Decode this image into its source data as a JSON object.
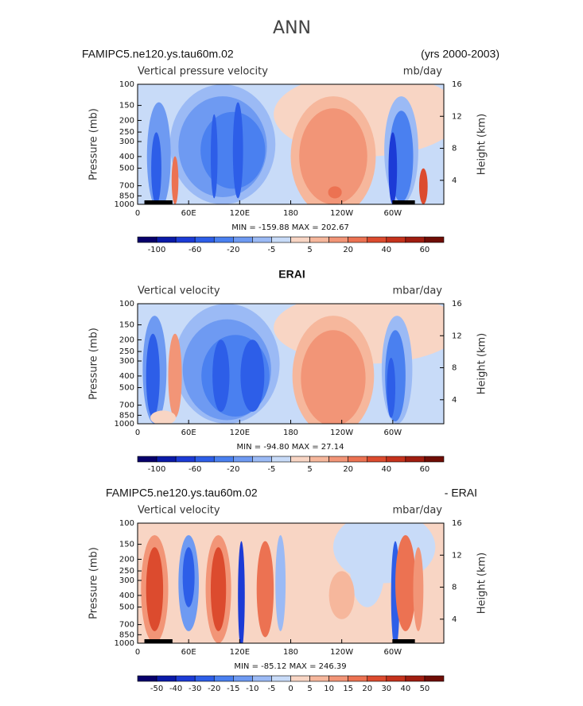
{
  "title": "ANN",
  "panels": [
    {
      "case": "FAMIPC5.ne120.ys.tau60m.02",
      "years": "(yrs 2000-2003)",
      "variable": "Vertical pressure velocity",
      "units": "mb/day",
      "y_label": "Pressure (mb)",
      "y2_label": "Height (km)",
      "ylim": [
        1000,
        100
      ],
      "yticks": [
        100,
        150,
        200,
        250,
        300,
        400,
        500,
        700,
        850,
        1000
      ],
      "y2lim": [
        1,
        16
      ],
      "y2ticks": [
        16,
        12,
        8,
        4
      ],
      "xlim": [
        0,
        360
      ],
      "xticks": [
        0,
        {
          "value": 60,
          "label": "60E"
        },
        {
          "value": 120,
          "label": "120E"
        },
        180,
        {
          "value": 240,
          "label": "120W"
        },
        {
          "value": 300,
          "label": "60W"
        }
      ],
      "stats": "MIN = -159.88   MAX = 202.67",
      "colorbar": {
        "labels": [
          -100,
          -60,
          -20,
          -5,
          5,
          20,
          40,
          60
        ],
        "colors": [
          "#08006b",
          "#0a1aa8",
          "#1c3bd6",
          "#2d5ee8",
          "#4a80f0",
          "#6e9af2",
          "#9bbaf5",
          "#c8dbf8",
          "#f8d5c4",
          "#f6b79c",
          "#f29577",
          "#ec7252",
          "#dc4b2e",
          "#c5321c",
          "#a01d10",
          "#6f0d05"
        ]
      }
    },
    {
      "title": "ERAI",
      "variable": "Vertical velocity",
      "units": "mbar/day",
      "y_label": "Pressure (mb)",
      "y2_label": "Height (km)",
      "ylim": [
        1000,
        100
      ],
      "yticks": [
        100,
        150,
        200,
        250,
        300,
        400,
        500,
        700,
        850,
        1000
      ],
      "y2lim": [
        1,
        16
      ],
      "y2ticks": [
        16,
        12,
        8,
        4
      ],
      "xlim": [
        0,
        360
      ],
      "xticks": [
        0,
        {
          "value": 60,
          "label": "60E"
        },
        {
          "value": 120,
          "label": "120E"
        },
        180,
        {
          "value": 240,
          "label": "120W"
        },
        {
          "value": 300,
          "label": "60W"
        }
      ],
      "stats": "MIN = -94.80   MAX =  27.14",
      "colorbar": {
        "labels": [
          -100,
          -60,
          -20,
          -5,
          5,
          20,
          40,
          60
        ],
        "colors": [
          "#08006b",
          "#0a1aa8",
          "#1c3bd6",
          "#2d5ee8",
          "#4a80f0",
          "#6e9af2",
          "#9bbaf5",
          "#c8dbf8",
          "#f8d5c4",
          "#f6b79c",
          "#f29577",
          "#ec7252",
          "#dc4b2e",
          "#c5321c",
          "#a01d10",
          "#6f0d05"
        ]
      }
    },
    {
      "case": "FAMIPC5.ne120.ys.tau60m.02",
      "suffix": "- ERAI",
      "variable": "Vertical velocity",
      "units": "mbar/day",
      "y_label": "Pressure (mb)",
      "y2_label": "Height (km)",
      "ylim": [
        1000,
        100
      ],
      "yticks": [
        100,
        150,
        200,
        250,
        300,
        400,
        500,
        700,
        850,
        1000
      ],
      "y2lim": [
        1,
        16
      ],
      "y2ticks": [
        16,
        12,
        8,
        4
      ],
      "xlim": [
        0,
        360
      ],
      "xticks": [
        0,
        {
          "value": 60,
          "label": "60E"
        },
        {
          "value": 120,
          "label": "120E"
        },
        180,
        {
          "value": 240,
          "label": "120W"
        },
        {
          "value": 300,
          "label": "60W"
        }
      ],
      "stats": "MIN = -85.12   MAX = 246.39",
      "colorbar": {
        "labels": [
          -50,
          -40,
          -30,
          -20,
          -15,
          -10,
          -5,
          0,
          5,
          10,
          15,
          20,
          30,
          40,
          50
        ],
        "colors": [
          "#08006b",
          "#0a1aa8",
          "#1c3bd6",
          "#2d5ee8",
          "#4a80f0",
          "#6e9af2",
          "#9bbaf5",
          "#c8dbf8",
          "#f8d5c4",
          "#f6b79c",
          "#f29577",
          "#ec7252",
          "#dc4b2e",
          "#c5321c",
          "#a01d10",
          "#6f0d05"
        ]
      }
    }
  ]
}
